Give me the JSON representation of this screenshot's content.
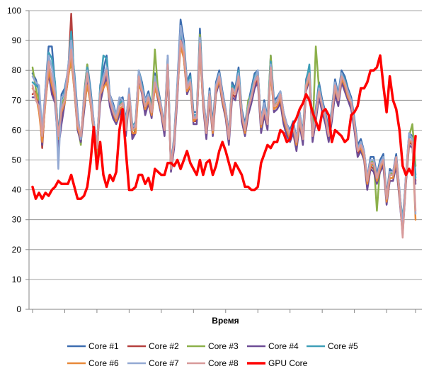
{
  "chart_data": {
    "type": "line",
    "title": "",
    "xlabel": "Время",
    "ylabel": "",
    "ylim": [
      0,
      100
    ],
    "yticks": [
      "0",
      "10",
      "20",
      "30",
      "40",
      "50",
      "60",
      "70",
      "80",
      "90",
      "100"
    ],
    "grid": "horizontal",
    "legend_position": "bottom",
    "x_count": 120,
    "series": [
      {
        "name": "Core #1",
        "color": "#3D6DB0",
        "width": 2.5,
        "values": [
          79,
          77,
          73,
          58,
          74,
          88,
          88,
          75,
          58,
          72,
          74,
          80,
          88,
          79,
          66,
          56,
          72,
          82,
          74,
          63,
          54,
          75,
          80,
          85,
          72,
          69,
          65,
          70,
          71,
          63,
          73,
          60,
          63,
          80,
          76,
          70,
          73,
          68,
          79,
          74,
          68,
          62,
          85,
          48,
          58,
          76,
          97,
          90,
          76,
          79,
          66,
          66,
          94,
          72,
          61,
          74,
          62,
          76,
          80,
          73,
          67,
          59,
          76,
          74,
          81,
          67,
          62,
          69,
          74,
          79,
          80,
          63,
          70,
          64,
          85,
          70,
          71,
          73,
          66,
          62,
          60,
          63,
          57,
          66,
          59,
          77,
          81,
          60,
          67,
          76,
          70,
          66,
          60,
          67,
          77,
          72,
          80,
          78,
          74,
          71,
          64,
          55,
          57,
          53,
          44,
          51,
          51,
          45,
          50,
          52,
          38,
          47,
          46,
          52,
          40,
          28,
          45,
          59,
          58,
          45
        ]
      },
      {
        "name": "Core #2",
        "color": "#B5403E",
        "width": 2.5,
        "values": [
          72,
          73,
          71,
          54,
          71,
          81,
          73,
          70,
          55,
          64,
          70,
          78,
          99,
          74,
          61,
          57,
          67,
          77,
          70,
          60,
          54,
          70,
          75,
          79,
          69,
          65,
          63,
          66,
          68,
          59,
          71,
          58,
          60,
          78,
          73,
          66,
          70,
          65,
          76,
          71,
          66,
          59,
          81,
          47,
          55,
          72,
          92,
          85,
          73,
          76,
          63,
          63,
          89,
          69,
          58,
          71,
          59,
          73,
          77,
          70,
          65,
          56,
          72,
          71,
          77,
          64,
          59,
          66,
          70,
          75,
          77,
          60,
          66,
          61,
          81,
          67,
          68,
          70,
          63,
          59,
          57,
          60,
          54,
          63,
          56,
          74,
          78,
          57,
          64,
          72,
          67,
          63,
          57,
          64,
          73,
          69,
          77,
          74,
          71,
          68,
          61,
          52,
          54,
          51,
          41,
          48,
          47,
          43,
          47,
          49,
          36,
          44,
          44,
          49,
          38,
          26,
          43,
          56,
          55,
          43
        ]
      },
      {
        "name": "Core #3",
        "color": "#8CB04A",
        "width": 2.5,
        "values": [
          81,
          74,
          70,
          57,
          72,
          82,
          76,
          73,
          56,
          68,
          71,
          79,
          82,
          76,
          62,
          55,
          71,
          82,
          71,
          61,
          51,
          74,
          77,
          79,
          71,
          67,
          64,
          69,
          69,
          61,
          72,
          60,
          60,
          79,
          74,
          69,
          71,
          67,
          87,
          73,
          67,
          61,
          84,
          47,
          56,
          74,
          89,
          88,
          75,
          77,
          64,
          64,
          92,
          70,
          60,
          72,
          60,
          74,
          79,
          71,
          66,
          58,
          75,
          73,
          79,
          66,
          60,
          70,
          72,
          77,
          79,
          62,
          68,
          63,
          85,
          68,
          70,
          72,
          65,
          61,
          59,
          62,
          56,
          65,
          58,
          76,
          80,
          58,
          88,
          74,
          69,
          64,
          59,
          66,
          75,
          70,
          79,
          76,
          72,
          70,
          62,
          53,
          56,
          52,
          43,
          49,
          50,
          33,
          48,
          51,
          37,
          46,
          45,
          50,
          39,
          27,
          44,
          58,
          62,
          48
        ]
      },
      {
        "name": "Core #4",
        "color": "#6E4D96",
        "width": 2.5,
        "values": [
          71,
          71,
          69,
          55,
          70,
          79,
          72,
          69,
          54,
          62,
          69,
          77,
          86,
          73,
          60,
          56,
          66,
          76,
          69,
          59,
          53,
          69,
          74,
          78,
          68,
          64,
          62,
          65,
          67,
          58,
          70,
          57,
          59,
          77,
          72,
          65,
          69,
          64,
          75,
          70,
          65,
          58,
          80,
          46,
          54,
          71,
          91,
          84,
          72,
          75,
          62,
          62,
          88,
          68,
          57,
          70,
          58,
          72,
          76,
          69,
          64,
          55,
          71,
          70,
          76,
          63,
          58,
          65,
          69,
          74,
          76,
          59,
          65,
          60,
          80,
          66,
          67,
          69,
          62,
          58,
          56,
          59,
          53,
          62,
          55,
          73,
          77,
          56,
          63,
          71,
          66,
          62,
          56,
          63,
          72,
          68,
          76,
          73,
          70,
          67,
          60,
          51,
          53,
          50,
          40,
          47,
          46,
          42,
          46,
          48,
          35,
          43,
          43,
          48,
          37,
          25,
          42,
          55,
          54,
          42
        ]
      },
      {
        "name": "Core #5",
        "color": "#3F9FB8",
        "width": 2.5,
        "values": [
          76,
          75,
          74,
          59,
          73,
          86,
          84,
          76,
          57,
          70,
          73,
          80,
          93,
          78,
          64,
          57,
          70,
          81,
          73,
          62,
          55,
          74,
          85,
          84,
          71,
          68,
          65,
          69,
          70,
          62,
          73,
          62,
          62,
          80,
          75,
          69,
          72,
          66,
          77,
          73,
          67,
          61,
          84,
          48,
          57,
          75,
          92,
          89,
          75,
          78,
          65,
          65,
          90,
          71,
          60,
          73,
          61,
          75,
          79,
          72,
          66,
          58,
          75,
          73,
          80,
          66,
          61,
          68,
          73,
          78,
          80,
          62,
          69,
          63,
          83,
          69,
          70,
          73,
          65,
          61,
          58,
          62,
          56,
          65,
          57,
          76,
          82,
          59,
          66,
          75,
          69,
          65,
          59,
          66,
          76,
          71,
          79,
          77,
          73,
          70,
          63,
          54,
          55,
          52,
          43,
          49,
          48,
          44,
          48,
          51,
          37,
          45,
          45,
          51,
          39,
          30,
          44,
          58,
          57,
          44
        ]
      },
      {
        "name": "Core #6",
        "color": "#E8893A",
        "width": 2.5,
        "values": [
          74,
          72,
          66,
          56,
          69,
          80,
          75,
          71,
          57,
          66,
          69,
          77,
          84,
          73,
          61,
          57,
          68,
          75,
          69,
          60,
          53,
          72,
          74,
          76,
          70,
          66,
          63,
          67,
          68,
          60,
          71,
          59,
          59,
          75,
          73,
          67,
          70,
          65,
          74,
          71,
          66,
          60,
          81,
          47,
          56,
          73,
          88,
          84,
          73,
          75,
          63,
          64,
          87,
          69,
          59,
          71,
          59,
          73,
          77,
          70,
          65,
          57,
          73,
          72,
          77,
          65,
          59,
          67,
          71,
          76,
          78,
          61,
          67,
          62,
          79,
          67,
          68,
          71,
          64,
          60,
          57,
          61,
          55,
          63,
          57,
          74,
          78,
          58,
          65,
          73,
          68,
          64,
          58,
          65,
          74,
          70,
          77,
          75,
          71,
          69,
          62,
          53,
          54,
          51,
          42,
          48,
          49,
          43,
          47,
          50,
          36,
          44,
          44,
          50,
          38,
          26,
          43,
          56,
          56,
          30
        ]
      },
      {
        "name": "Core #7",
        "color": "#93A9D3",
        "width": 2.5,
        "values": [
          78,
          76,
          75,
          60,
          74,
          85,
          81,
          74,
          47,
          71,
          72,
          81,
          90,
          77,
          65,
          57,
          71,
          80,
          72,
          63,
          55,
          73,
          78,
          81,
          72,
          68,
          65,
          71,
          70,
          62,
          74,
          61,
          62,
          80,
          74,
          70,
          72,
          66,
          78,
          72,
          68,
          61,
          85,
          48,
          57,
          75,
          95,
          88,
          75,
          77,
          64,
          65,
          91,
          71,
          61,
          73,
          60,
          75,
          79,
          72,
          67,
          58,
          74,
          73,
          79,
          66,
          61,
          68,
          72,
          77,
          80,
          63,
          69,
          63,
          82,
          69,
          70,
          73,
          66,
          62,
          59,
          62,
          57,
          66,
          58,
          75,
          79,
          59,
          66,
          74,
          69,
          65,
          59,
          66,
          76,
          71,
          79,
          76,
          73,
          70,
          63,
          54,
          56,
          53,
          44,
          50,
          50,
          44,
          49,
          51,
          37,
          46,
          46,
          51,
          40,
          28,
          45,
          59,
          57,
          32
        ]
      },
      {
        "name": "Core #8",
        "color": "#D89A9A",
        "width": 2.5,
        "values": [
          75,
          70,
          68,
          58,
          70,
          83,
          77,
          72,
          58,
          67,
          70,
          79,
          87,
          74,
          62,
          58,
          69,
          79,
          70,
          61,
          54,
          72,
          76,
          80,
          70,
          66,
          64,
          68,
          69,
          60,
          72,
          60,
          61,
          78,
          73,
          68,
          71,
          66,
          76,
          72,
          67,
          60,
          82,
          47,
          56,
          73,
          90,
          86,
          74,
          76,
          64,
          64,
          89,
          70,
          59,
          72,
          60,
          74,
          78,
          71,
          66,
          57,
          74,
          72,
          78,
          65,
          60,
          67,
          71,
          76,
          78,
          62,
          67,
          62,
          81,
          68,
          69,
          72,
          65,
          61,
          58,
          61,
          56,
          64,
          57,
          75,
          79,
          58,
          65,
          73,
          68,
          64,
          58,
          65,
          75,
          70,
          78,
          76,
          72,
          69,
          62,
          53,
          55,
          52,
          43,
          49,
          49,
          44,
          48,
          50,
          37,
          45,
          45,
          51,
          39,
          24,
          44,
          57,
          56,
          33
        ]
      },
      {
        "name": "GPU Core",
        "color": "#FF0000",
        "width": 3.5,
        "values": [
          41,
          37,
          39,
          37,
          39,
          38,
          40,
          41,
          43,
          42,
          42,
          42,
          45,
          41,
          37,
          37,
          38,
          41,
          49,
          61,
          47,
          56,
          45,
          41,
          45,
          43,
          46,
          60,
          67,
          53,
          40,
          40,
          41,
          45,
          45,
          42,
          44,
          40,
          47,
          46,
          45,
          45,
          49,
          49,
          48,
          50,
          47,
          50,
          53,
          49,
          47,
          45,
          50,
          45,
          49,
          50,
          45,
          48,
          53,
          56,
          53,
          49,
          45,
          49,
          47,
          45,
          41,
          41,
          40,
          40,
          41,
          49,
          52,
          55,
          54,
          56,
          56,
          60,
          59,
          56,
          57,
          62,
          64,
          67,
          69,
          72,
          70,
          66,
          63,
          60,
          66,
          67,
          65,
          56,
          60,
          59,
          58,
          56,
          57,
          65,
          66,
          68,
          74,
          74,
          76,
          80,
          80,
          81,
          85,
          75,
          66,
          78,
          70,
          67,
          60,
          48,
          45,
          47,
          45,
          58
        ]
      }
    ]
  }
}
